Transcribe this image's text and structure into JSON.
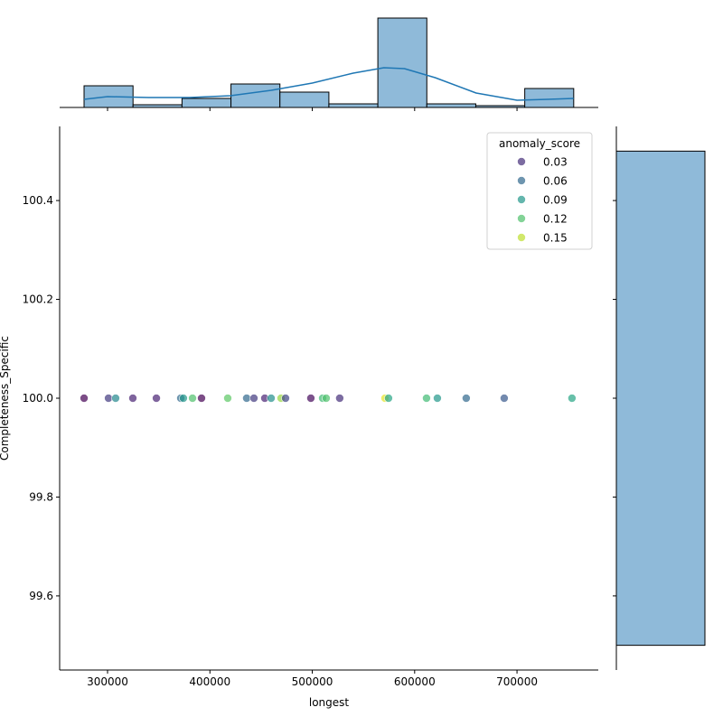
{
  "chart_data": {
    "type": "scatter",
    "subtype": "jointplot",
    "xlabel": "longest",
    "ylabel": "Completeness_Specific",
    "xlim": [
      253200,
      779400
    ],
    "ylim": [
      99.45,
      100.55
    ],
    "x_ticks": [
      300000,
      400000,
      500000,
      600000,
      700000
    ],
    "x_tick_labels": [
      "300000",
      "400000",
      "500000",
      "600000",
      "700000"
    ],
    "y_ticks": [
      99.6,
      99.8,
      100.0,
      100.2,
      100.4
    ],
    "y_tick_labels": [
      "99.6",
      "99.8",
      "100.0",
      "100.2",
      "100.4"
    ],
    "grid": false,
    "hue": "anomaly_score",
    "colormap": "viridis",
    "hue_range": [
      0.006,
      0.166
    ],
    "point_alpha": 0.7,
    "legend": {
      "title": "anomaly_score",
      "placement": "top-right",
      "entries": [
        {
          "label": "0.03",
          "value": 0.03
        },
        {
          "label": "0.06",
          "value": 0.06
        },
        {
          "label": "0.09",
          "value": 0.09
        },
        {
          "label": "0.12",
          "value": 0.12
        },
        {
          "label": "0.15",
          "value": 0.15
        }
      ]
    },
    "points": [
      {
        "x": 277050,
        "y": 100.0,
        "score": 0.006
      },
      {
        "x": 300900,
        "y": 100.0,
        "score": 0.035
      },
      {
        "x": 307900,
        "y": 100.0,
        "score": 0.08
      },
      {
        "x": 324700,
        "y": 100.0,
        "score": 0.025
      },
      {
        "x": 347700,
        "y": 100.0,
        "score": 0.025
      },
      {
        "x": 371500,
        "y": 100.0,
        "score": 0.06
      },
      {
        "x": 374100,
        "y": 100.0,
        "score": 0.09
      },
      {
        "x": 383000,
        "y": 100.0,
        "score": 0.12
      },
      {
        "x": 391800,
        "y": 100.0,
        "score": 0.006
      },
      {
        "x": 417400,
        "y": 100.0,
        "score": 0.125
      },
      {
        "x": 435900,
        "y": 100.0,
        "score": 0.06
      },
      {
        "x": 443000,
        "y": 100.0,
        "score": 0.035
      },
      {
        "x": 453600,
        "y": 100.0,
        "score": 0.025
      },
      {
        "x": 459800,
        "y": 100.0,
        "score": 0.085
      },
      {
        "x": 469500,
        "y": 100.0,
        "score": 0.14
      },
      {
        "x": 473900,
        "y": 100.0,
        "score": 0.04
      },
      {
        "x": 498600,
        "y": 100.0,
        "score": 0.01
      },
      {
        "x": 510100,
        "y": 100.0,
        "score": 0.115
      },
      {
        "x": 513600,
        "y": 100.0,
        "score": 0.12
      },
      {
        "x": 526800,
        "y": 100.0,
        "score": 0.03
      },
      {
        "x": 571000,
        "y": 100.0,
        "score": 0.16
      },
      {
        "x": 574500,
        "y": 100.0,
        "score": 0.1
      },
      {
        "x": 611600,
        "y": 100.0,
        "score": 0.115
      },
      {
        "x": 622200,
        "y": 100.0,
        "score": 0.09
      },
      {
        "x": 650400,
        "y": 100.0,
        "score": 0.06
      },
      {
        "x": 687500,
        "y": 100.0,
        "score": 0.05
      },
      {
        "x": 753700,
        "y": 100.0,
        "score": 0.1
      }
    ],
    "marginal_x": {
      "type": "histogram",
      "bin_start": 277050,
      "bin_end": 755400,
      "relative_heights": [
        24,
        3,
        10,
        26,
        17,
        4,
        99,
        4,
        2,
        21
      ],
      "kde": {
        "x": [
          277050,
          300000,
          340000,
          380000,
          420000,
          460000,
          500000,
          540000,
          570000,
          590000,
          620000,
          660000,
          700000,
          730000,
          755400
        ],
        "relative_heights": [
          9,
          12,
          11,
          11,
          13,
          19,
          27,
          38,
          44,
          43,
          33,
          16,
          8,
          9,
          10
        ]
      },
      "color": "#1f77b4",
      "fill": "#8fbad9"
    },
    "marginal_y": {
      "type": "histogram",
      "bins": [
        [
          99.5,
          100.5
        ]
      ],
      "relative_heights": [
        100
      ],
      "fill": "#8fbad9"
    }
  }
}
